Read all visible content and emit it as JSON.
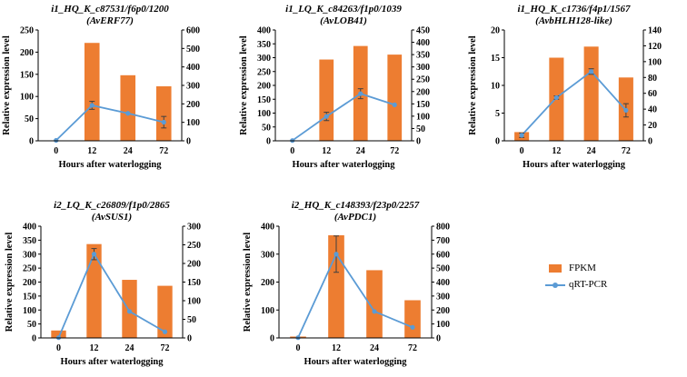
{
  "colors": {
    "bar": "#ED7D31",
    "line": "#5B9BD5",
    "axis": "#000000",
    "errorbar": "#404040"
  },
  "legend": {
    "bar_label": "FPKM",
    "line_label": "qRT-PCR"
  },
  "chart_data": [
    {
      "type": "bar+line",
      "title": "i1_HQ_K_c87531/f6p0/1200",
      "subtitle": "(AvERF77)",
      "xlabel": "Hours after waterlogging",
      "ylabel": "Relative expression level",
      "y2label": "",
      "categories": [
        "0",
        "12",
        "24",
        "72"
      ],
      "ylim": [
        0,
        250
      ],
      "yticks": [
        0,
        50,
        100,
        150,
        200,
        250
      ],
      "y2lim": [
        0,
        600
      ],
      "y2ticks": [
        0,
        100,
        200,
        300,
        400,
        500,
        600
      ],
      "series": [
        {
          "name": "FPKM",
          "kind": "bar",
          "axis": "right",
          "values": [
            0,
            530,
            355,
            295
          ]
        },
        {
          "name": "qRT-PCR",
          "kind": "line",
          "axis": "left",
          "values": [
            1,
            80,
            62,
            42
          ],
          "errors": [
            0,
            9,
            0,
            13
          ]
        }
      ]
    },
    {
      "type": "bar+line",
      "title": "i1_LQ_K_c84263/f1p0/1039",
      "subtitle": "(AvLOB41)",
      "xlabel": "Hours after waterlogging",
      "ylabel": "Relative expression level",
      "y2label": "",
      "categories": [
        "0",
        "12",
        "24",
        "72"
      ],
      "ylim": [
        0,
        400
      ],
      "yticks": [
        0,
        50,
        100,
        150,
        200,
        250,
        300,
        350,
        400
      ],
      "y2lim": [
        0,
        450
      ],
      "y2ticks": [
        0,
        50,
        100,
        150,
        200,
        250,
        300,
        350,
        400,
        450
      ],
      "series": [
        {
          "name": "FPKM",
          "kind": "bar",
          "axis": "right",
          "values": [
            0,
            330,
            385,
            350
          ]
        },
        {
          "name": "qRT-PCR",
          "kind": "line",
          "axis": "left",
          "values": [
            1,
            88,
            170,
            130
          ],
          "errors": [
            0,
            15,
            18,
            0
          ]
        }
      ]
    },
    {
      "type": "bar+line",
      "title": "i1_HQ_K_c1736/f4p1/1567",
      "subtitle": "(AvbHLH128-like)",
      "xlabel": "Hours after waterlogging",
      "ylabel": "Relative expression level",
      "y2label": "",
      "categories": [
        "0",
        "12",
        "24",
        "72"
      ],
      "ylim": [
        0,
        20
      ],
      "yticks": [
        0,
        5,
        10,
        15,
        20
      ],
      "y2lim": [
        0,
        140
      ],
      "y2ticks": [
        0,
        20,
        40,
        60,
        80,
        100,
        120,
        140
      ],
      "series": [
        {
          "name": "FPKM",
          "kind": "bar",
          "axis": "right",
          "values": [
            11,
            105,
            119,
            80
          ]
        },
        {
          "name": "qRT-PCR",
          "kind": "line",
          "axis": "left",
          "values": [
            1,
            7.8,
            12.5,
            5.5
          ],
          "errors": [
            0.4,
            0.3,
            0.5,
            1.2
          ]
        }
      ]
    },
    {
      "type": "bar+line",
      "title": "i2_LQ_K_c26809/f1p0/2865",
      "subtitle": "(AvSUS1)",
      "xlabel": "Hours after waterlogging",
      "ylabel": "Relative expression level",
      "y2label": "",
      "categories": [
        "0",
        "12",
        "24",
        "72"
      ],
      "ylim": [
        0,
        400
      ],
      "yticks": [
        0,
        50,
        100,
        150,
        200,
        250,
        300,
        350,
        400
      ],
      "y2lim": [
        0,
        300
      ],
      "y2ticks": [
        0,
        50,
        100,
        150,
        200,
        250,
        300
      ],
      "series": [
        {
          "name": "FPKM",
          "kind": "bar",
          "axis": "right",
          "values": [
            20,
            252,
            156,
            140
          ]
        },
        {
          "name": "qRT-PCR",
          "kind": "line",
          "axis": "left",
          "values": [
            1,
            300,
            95,
            22
          ],
          "errors": [
            0,
            20,
            0,
            0
          ]
        }
      ]
    },
    {
      "type": "bar+line",
      "title": "i2_HQ_K_c148393/f23p0/2257",
      "subtitle": "(AvPDC1)",
      "xlabel": "Hours after waterlogging",
      "ylabel": "Relative expression level",
      "y2label": "",
      "categories": [
        "0",
        "12",
        "24",
        "72"
      ],
      "ylim": [
        0,
        400
      ],
      "yticks": [
        0,
        100,
        200,
        300,
        400
      ],
      "y2lim": [
        0,
        800
      ],
      "y2ticks": [
        0,
        100,
        200,
        300,
        400,
        500,
        600,
        700,
        800
      ],
      "series": [
        {
          "name": "FPKM",
          "kind": "bar",
          "axis": "right",
          "values": [
            10,
            735,
            485,
            270
          ]
        },
        {
          "name": "qRT-PCR",
          "kind": "line",
          "axis": "left",
          "values": [
            1,
            300,
            95,
            38
          ],
          "errors": [
            0,
            65,
            0,
            0
          ]
        }
      ]
    }
  ]
}
